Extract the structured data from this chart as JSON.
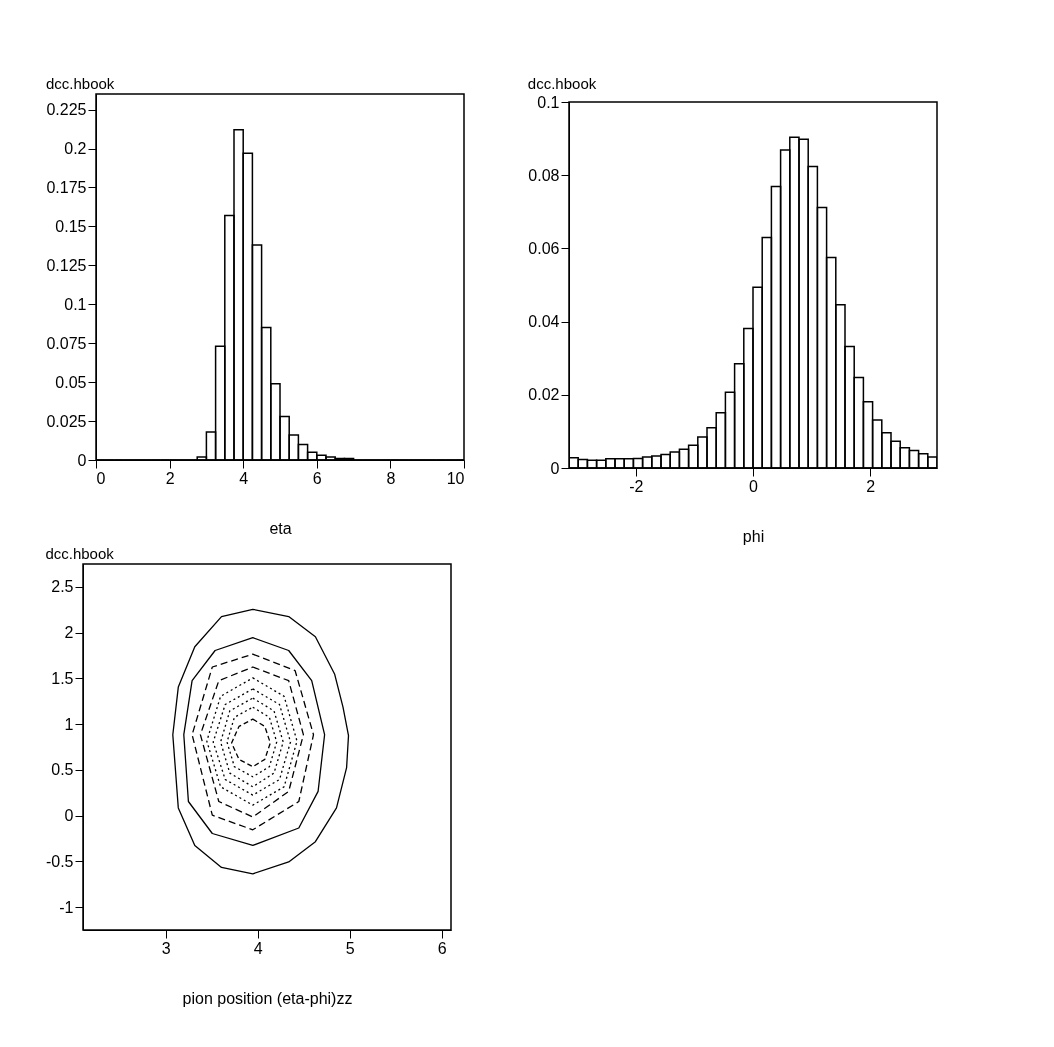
{
  "chart_data": [
    {
      "type": "histogram",
      "title": "dcc.hbook",
      "xlabel": "eta",
      "color": "#000000",
      "bins": [
        0,
        0.25,
        0.5,
        0.75,
        1,
        1.25,
        1.5,
        1.75,
        2,
        2.25,
        2.5,
        2.75,
        3,
        3.25,
        3.5,
        3.75,
        4,
        4.25,
        4.5,
        4.75,
        5,
        5.25,
        5.5,
        5.75,
        6,
        6.25,
        6.5,
        6.75,
        7,
        7.25,
        7.5,
        7.75,
        8,
        8.25,
        8.5,
        8.75,
        9,
        9.25,
        9.5,
        9.75,
        10
      ],
      "values": [
        0,
        0,
        0,
        0,
        0,
        0,
        0,
        0,
        0,
        0,
        0,
        0.002,
        0.018,
        0.073,
        0.157,
        0.212,
        0.197,
        0.138,
        0.085,
        0.049,
        0.028,
        0.016,
        0.01,
        0.005,
        0.003,
        0.002,
        0.001,
        0.001,
        0,
        0,
        0,
        0,
        0,
        0,
        0,
        0,
        0,
        0,
        0,
        0
      ],
      "xlim": [
        0,
        10
      ],
      "xticks": [
        0,
        2,
        4,
        6,
        8,
        10
      ],
      "ylim": [
        0,
        0.235
      ],
      "yticks": [
        0,
        0.025,
        0.05,
        0.075,
        0.1,
        0.125,
        0.15,
        0.175,
        0.2,
        0.225
      ],
      "grid": false
    },
    {
      "type": "histogram",
      "title": "dcc.hbook",
      "xlabel": "phi",
      "color": "#000000",
      "bins": [
        -3.1416,
        -2.9845,
        -2.8274,
        -2.6704,
        -2.5133,
        -2.3562,
        -2.1991,
        -2.042,
        -1.885,
        -1.7279,
        -1.5708,
        -1.4137,
        -1.2566,
        -1.0996,
        -0.9425,
        -0.7854,
        -0.6283,
        -0.4712,
        -0.3142,
        -0.1571,
        0,
        0.1571,
        0.3142,
        0.4712,
        0.6283,
        0.7854,
        0.9425,
        1.0996,
        1.2566,
        1.4137,
        1.5708,
        1.7279,
        1.885,
        2.042,
        2.1991,
        2.3562,
        2.5133,
        2.6704,
        2.8274,
        2.9845,
        3.1416
      ],
      "values": [
        0.0028,
        0.0023,
        0.0021,
        0.0021,
        0.0025,
        0.0025,
        0.0025,
        0.0026,
        0.003,
        0.0033,
        0.0037,
        0.0044,
        0.0051,
        0.0062,
        0.0085,
        0.011,
        0.0151,
        0.0207,
        0.0285,
        0.0381,
        0.0494,
        0.063,
        0.0769,
        0.0869,
        0.0904,
        0.0898,
        0.0824,
        0.0712,
        0.0575,
        0.0446,
        0.0332,
        0.0247,
        0.0181,
        0.0131,
        0.0096,
        0.0073,
        0.0055,
        0.0048,
        0.0039,
        0.003
      ],
      "xlim": [
        -3.1416,
        3.1416
      ],
      "xticks": [
        -2,
        0,
        2
      ],
      "ylim": [
        0,
        0.1
      ],
      "yticks": [
        0,
        0.02,
        0.04,
        0.06,
        0.08,
        0.1
      ],
      "grid": false
    },
    {
      "type": "line",
      "title": "dcc.hbook",
      "xlabel": "pion position (eta-phi)zz",
      "xlim": [
        2.1,
        6.1
      ],
      "xticks": [
        3,
        4,
        5,
        6
      ],
      "ylim": [
        -1.25,
        2.75
      ],
      "yticks": [
        -1,
        -0.5,
        0,
        0.5,
        1,
        1.5,
        2,
        2.5
      ]
    }
  ]
}
